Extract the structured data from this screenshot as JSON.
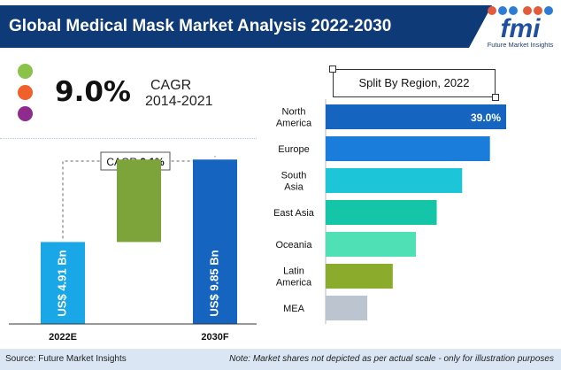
{
  "header": {
    "title": "Global Medical Mask Market Analysis 2022-2030",
    "logo_text": "fmi",
    "logo_subtitle": "Future Market Insights"
  },
  "cagr": {
    "value": "9.0%",
    "label": "CAGR",
    "period": "2014-2021"
  },
  "colors": {
    "header_bg": "#0e3a78",
    "dot_green": "#8bc34a",
    "dot_orange": "#f0602a",
    "dot_purple": "#8e2c8e",
    "bar_2022": "#1aa7e8",
    "bar_growth": "#7da43a",
    "bar_2030": "#1565c0"
  },
  "chart_data": [
    {
      "type": "bar",
      "categories": [
        "2022E",
        "2030F"
      ],
      "values": [
        4.91,
        9.85
      ],
      "value_labels": [
        "US$ 4.91 Bn",
        "US$ 9.85 Bn"
      ],
      "increment": 4.94,
      "annotation": {
        "prefix": "CAGR ",
        "value": "9.1%"
      },
      "ylim": [
        0,
        10.5
      ]
    },
    {
      "type": "bar",
      "orientation": "horizontal",
      "title": "Split By Region, 2022",
      "categories": [
        [
          "North",
          "America"
        ],
        [
          "Europe"
        ],
        [
          "South",
          "Asia"
        ],
        [
          "East Asia"
        ],
        [
          "Oceania"
        ],
        [
          "Latin",
          "America"
        ],
        [
          "MEA"
        ]
      ],
      "values": [
        39.0,
        35.5,
        29.5,
        24.0,
        19.5,
        14.5,
        9.0
      ],
      "data_labels": [
        "39.0%",
        "",
        "",
        "",
        "",
        "",
        ""
      ],
      "colors": [
        "#1565c0",
        "#1a7ddb",
        "#1cc6d8",
        "#15c5a8",
        "#4fe0b5",
        "#8aab2c",
        "#bcc4cf"
      ],
      "xlim": [
        0,
        39.0
      ]
    }
  ],
  "footer": {
    "source": "Source: Future Market Insights",
    "note": "Note: Market shares not depicted as per actual scale - only for illustration purposes"
  }
}
